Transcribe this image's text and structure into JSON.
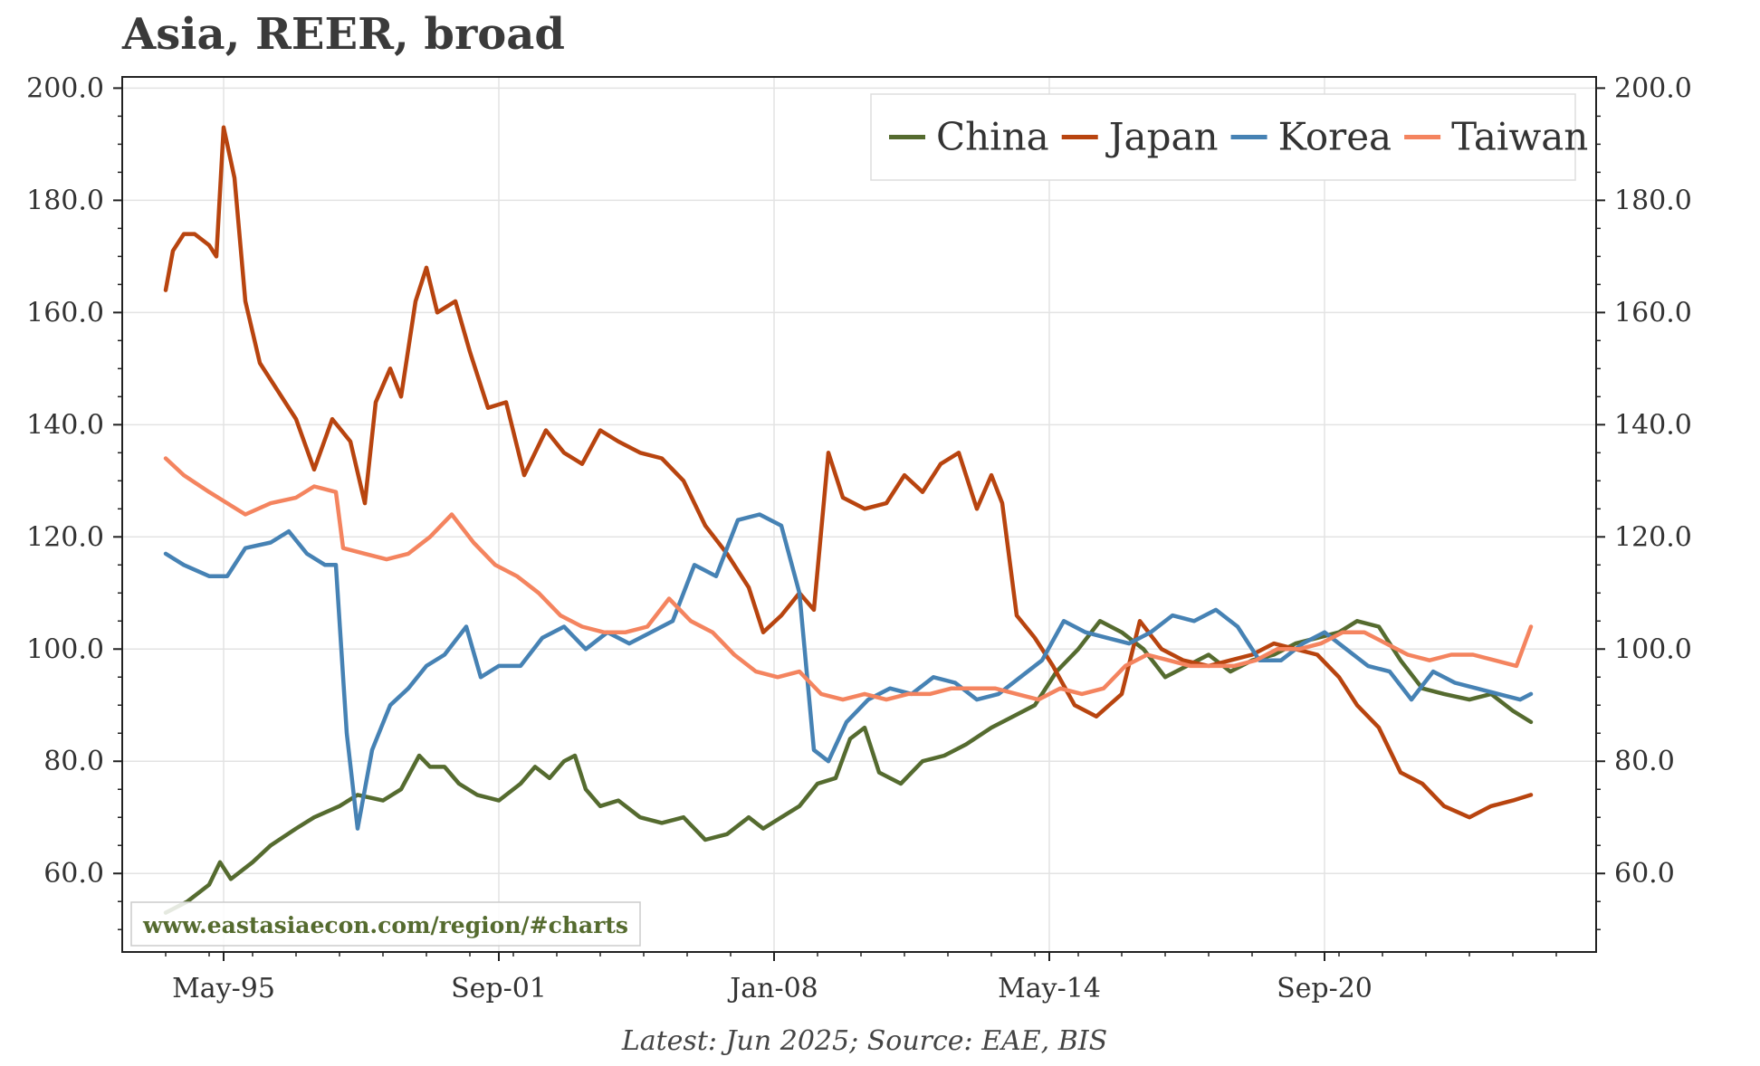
{
  "chart_data": {
    "type": "line",
    "title": "Asia, REER, broad",
    "xlabel": "",
    "ylabel": "",
    "ylim": [
      46,
      202
    ],
    "yticks": [
      "60.0",
      "80.0",
      "100.0",
      "120.0",
      "140.0",
      "160.0",
      "180.0",
      "200.0"
    ],
    "xticks": [
      "May-95",
      "Sep-01",
      "Jan-08",
      "May-14",
      "Sep-20"
    ],
    "xrange": [
      "1993-01",
      "2026-12"
    ],
    "grid": true,
    "legend_position": "top-right",
    "watermark": "www.eastasiaecon.com/region/#charts",
    "footer": "Latest: Jun 2025; Source: EAE, BIS",
    "series": [
      {
        "name": "China",
        "color": "#556b2f",
        "points": [
          [
            "1994-01",
            53
          ],
          [
            "1994-07",
            55
          ],
          [
            "1995-01",
            58
          ],
          [
            "1995-04",
            62
          ],
          [
            "1995-07",
            59
          ],
          [
            "1996-01",
            62
          ],
          [
            "1996-06",
            65
          ],
          [
            "1997-01",
            68
          ],
          [
            "1997-06",
            70
          ],
          [
            "1998-01",
            72
          ],
          [
            "1998-06",
            74
          ],
          [
            "1999-01",
            73
          ],
          [
            "1999-06",
            75
          ],
          [
            "1999-11",
            81
          ],
          [
            "2000-02",
            79
          ],
          [
            "2000-06",
            79
          ],
          [
            "2000-10",
            76
          ],
          [
            "2001-03",
            74
          ],
          [
            "2001-09",
            73
          ],
          [
            "2002-03",
            76
          ],
          [
            "2002-07",
            79
          ],
          [
            "2002-11",
            77
          ],
          [
            "2003-03",
            80
          ],
          [
            "2003-06",
            81
          ],
          [
            "2003-09",
            75
          ],
          [
            "2004-01",
            72
          ],
          [
            "2004-06",
            73
          ],
          [
            "2004-12",
            70
          ],
          [
            "2005-06",
            69
          ],
          [
            "2005-12",
            70
          ],
          [
            "2006-06",
            66
          ],
          [
            "2006-12",
            67
          ],
          [
            "2007-06",
            70
          ],
          [
            "2007-10",
            68
          ],
          [
            "2008-03",
            70
          ],
          [
            "2008-08",
            72
          ],
          [
            "2009-01",
            76
          ],
          [
            "2009-06",
            77
          ],
          [
            "2009-10",
            84
          ],
          [
            "2010-02",
            86
          ],
          [
            "2010-06",
            78
          ],
          [
            "2010-12",
            76
          ],
          [
            "2011-06",
            80
          ],
          [
            "2011-12",
            81
          ],
          [
            "2012-06",
            83
          ],
          [
            "2013-01",
            86
          ],
          [
            "2013-07",
            88
          ],
          [
            "2014-01",
            90
          ],
          [
            "2014-07",
            96
          ],
          [
            "2015-01",
            100
          ],
          [
            "2015-07",
            105
          ],
          [
            "2016-01",
            103
          ],
          [
            "2016-07",
            100
          ],
          [
            "2017-01",
            95
          ],
          [
            "2017-07",
            97
          ],
          [
            "2018-01",
            99
          ],
          [
            "2018-07",
            96
          ],
          [
            "2019-01",
            98
          ],
          [
            "2019-07",
            99
          ],
          [
            "2020-01",
            101
          ],
          [
            "2020-07",
            102
          ],
          [
            "2021-01",
            103
          ],
          [
            "2021-06",
            105
          ],
          [
            "2021-12",
            104
          ],
          [
            "2022-06",
            98
          ],
          [
            "2022-12",
            93
          ],
          [
            "2023-06",
            92
          ],
          [
            "2024-01",
            91
          ],
          [
            "2024-07",
            92
          ],
          [
            "2025-01",
            89
          ],
          [
            "2025-06",
            87
          ]
        ]
      },
      {
        "name": "Japan",
        "color": "#b8440f",
        "points": [
          [
            "1994-01",
            164
          ],
          [
            "1994-03",
            171
          ],
          [
            "1994-06",
            174
          ],
          [
            "1994-09",
            174
          ],
          [
            "1995-01",
            172
          ],
          [
            "1995-03",
            170
          ],
          [
            "1995-05",
            193
          ],
          [
            "1995-08",
            184
          ],
          [
            "1995-11",
            162
          ],
          [
            "1996-03",
            151
          ],
          [
            "1996-08",
            146
          ],
          [
            "1997-01",
            141
          ],
          [
            "1997-06",
            132
          ],
          [
            "1997-11",
            141
          ],
          [
            "1998-04",
            137
          ],
          [
            "1998-08",
            126
          ],
          [
            "1998-11",
            144
          ],
          [
            "1999-03",
            150
          ],
          [
            "1999-06",
            145
          ],
          [
            "1999-10",
            162
          ],
          [
            "2000-01",
            168
          ],
          [
            "2000-04",
            160
          ],
          [
            "2000-09",
            162
          ],
          [
            "2001-01",
            153
          ],
          [
            "2001-06",
            143
          ],
          [
            "2001-11",
            144
          ],
          [
            "2002-04",
            131
          ],
          [
            "2002-10",
            139
          ],
          [
            "2003-03",
            135
          ],
          [
            "2003-08",
            133
          ],
          [
            "2004-01",
            139
          ],
          [
            "2004-06",
            137
          ],
          [
            "2004-12",
            135
          ],
          [
            "2005-06",
            134
          ],
          [
            "2005-12",
            130
          ],
          [
            "2006-06",
            122
          ],
          [
            "2006-12",
            117
          ],
          [
            "2007-06",
            111
          ],
          [
            "2007-10",
            103
          ],
          [
            "2008-03",
            106
          ],
          [
            "2008-08",
            110
          ],
          [
            "2008-12",
            107
          ],
          [
            "2009-04",
            135
          ],
          [
            "2009-08",
            127
          ],
          [
            "2010-02",
            125
          ],
          [
            "2010-08",
            126
          ],
          [
            "2011-01",
            131
          ],
          [
            "2011-06",
            128
          ],
          [
            "2011-11",
            133
          ],
          [
            "2012-04",
            135
          ],
          [
            "2012-09",
            125
          ],
          [
            "2013-01",
            131
          ],
          [
            "2013-04",
            126
          ],
          [
            "2013-08",
            106
          ],
          [
            "2014-01",
            102
          ],
          [
            "2014-06",
            97
          ],
          [
            "2014-12",
            90
          ],
          [
            "2015-06",
            88
          ],
          [
            "2016-01",
            92
          ],
          [
            "2016-06",
            105
          ],
          [
            "2016-12",
            100
          ],
          [
            "2017-06",
            98
          ],
          [
            "2018-01",
            97
          ],
          [
            "2018-07",
            98
          ],
          [
            "2019-01",
            99
          ],
          [
            "2019-07",
            101
          ],
          [
            "2020-01",
            100
          ],
          [
            "2020-07",
            99
          ],
          [
            "2021-01",
            95
          ],
          [
            "2021-06",
            90
          ],
          [
            "2021-12",
            86
          ],
          [
            "2022-06",
            78
          ],
          [
            "2022-12",
            76
          ],
          [
            "2023-06",
            72
          ],
          [
            "2024-01",
            70
          ],
          [
            "2024-07",
            72
          ],
          [
            "2025-01",
            73
          ],
          [
            "2025-06",
            74
          ]
        ]
      },
      {
        "name": "Korea",
        "color": "#4682b4",
        "points": [
          [
            "1994-01",
            117
          ],
          [
            "1994-06",
            115
          ],
          [
            "1995-01",
            113
          ],
          [
            "1995-06",
            113
          ],
          [
            "1995-11",
            118
          ],
          [
            "1996-06",
            119
          ],
          [
            "1996-11",
            121
          ],
          [
            "1997-04",
            117
          ],
          [
            "1997-09",
            115
          ],
          [
            "1997-12",
            115
          ],
          [
            "1998-03",
            85
          ],
          [
            "1998-06",
            68
          ],
          [
            "1998-10",
            82
          ],
          [
            "1999-03",
            90
          ],
          [
            "1999-08",
            93
          ],
          [
            "2000-01",
            97
          ],
          [
            "2000-06",
            99
          ],
          [
            "2000-12",
            104
          ],
          [
            "2001-04",
            95
          ],
          [
            "2001-09",
            97
          ],
          [
            "2002-03",
            97
          ],
          [
            "2002-09",
            102
          ],
          [
            "2003-03",
            104
          ],
          [
            "2003-09",
            100
          ],
          [
            "2004-03",
            103
          ],
          [
            "2004-09",
            101
          ],
          [
            "2005-03",
            103
          ],
          [
            "2005-09",
            105
          ],
          [
            "2006-03",
            115
          ],
          [
            "2006-09",
            113
          ],
          [
            "2007-03",
            123
          ],
          [
            "2007-09",
            124
          ],
          [
            "2008-03",
            122
          ],
          [
            "2008-08",
            110
          ],
          [
            "2008-12",
            82
          ],
          [
            "2009-04",
            80
          ],
          [
            "2009-09",
            87
          ],
          [
            "2010-03",
            91
          ],
          [
            "2010-09",
            93
          ],
          [
            "2011-03",
            92
          ],
          [
            "2011-09",
            95
          ],
          [
            "2012-03",
            94
          ],
          [
            "2012-09",
            91
          ],
          [
            "2013-03",
            92
          ],
          [
            "2013-09",
            95
          ],
          [
            "2014-03",
            98
          ],
          [
            "2014-09",
            105
          ],
          [
            "2015-03",
            103
          ],
          [
            "2015-09",
            102
          ],
          [
            "2016-03",
            101
          ],
          [
            "2016-09",
            103
          ],
          [
            "2017-03",
            106
          ],
          [
            "2017-09",
            105
          ],
          [
            "2018-03",
            107
          ],
          [
            "2018-09",
            104
          ],
          [
            "2019-03",
            98
          ],
          [
            "2019-09",
            98
          ],
          [
            "2020-03",
            101
          ],
          [
            "2020-09",
            103
          ],
          [
            "2021-03",
            100
          ],
          [
            "2021-09",
            97
          ],
          [
            "2022-03",
            96
          ],
          [
            "2022-09",
            91
          ],
          [
            "2023-03",
            96
          ],
          [
            "2023-09",
            94
          ],
          [
            "2024-03",
            93
          ],
          [
            "2024-09",
            92
          ],
          [
            "2025-03",
            91
          ],
          [
            "2025-06",
            92
          ]
        ]
      },
      {
        "name": "Taiwan",
        "color": "#f4845f",
        "points": [
          [
            "1994-01",
            134
          ],
          [
            "1994-06",
            131
          ],
          [
            "1995-01",
            128
          ],
          [
            "1995-06",
            126
          ],
          [
            "1995-11",
            124
          ],
          [
            "1996-06",
            126
          ],
          [
            "1997-01",
            127
          ],
          [
            "1997-06",
            129
          ],
          [
            "1997-12",
            128
          ],
          [
            "1998-02",
            118
          ],
          [
            "1998-08",
            117
          ],
          [
            "1999-02",
            116
          ],
          [
            "1999-08",
            117
          ],
          [
            "2000-02",
            120
          ],
          [
            "2000-08",
            124
          ],
          [
            "2001-02",
            119
          ],
          [
            "2001-08",
            115
          ],
          [
            "2002-02",
            113
          ],
          [
            "2002-08",
            110
          ],
          [
            "2003-02",
            106
          ],
          [
            "2003-08",
            104
          ],
          [
            "2004-02",
            103
          ],
          [
            "2004-08",
            103
          ],
          [
            "2005-02",
            104
          ],
          [
            "2005-08",
            109
          ],
          [
            "2006-02",
            105
          ],
          [
            "2006-08",
            103
          ],
          [
            "2007-02",
            99
          ],
          [
            "2007-08",
            96
          ],
          [
            "2008-02",
            95
          ],
          [
            "2008-08",
            96
          ],
          [
            "2009-02",
            92
          ],
          [
            "2009-08",
            91
          ],
          [
            "2010-02",
            92
          ],
          [
            "2010-08",
            91
          ],
          [
            "2011-02",
            92
          ],
          [
            "2011-08",
            92
          ],
          [
            "2012-02",
            93
          ],
          [
            "2012-08",
            93
          ],
          [
            "2013-02",
            93
          ],
          [
            "2013-08",
            92
          ],
          [
            "2014-02",
            91
          ],
          [
            "2014-08",
            93
          ],
          [
            "2015-02",
            92
          ],
          [
            "2015-08",
            93
          ],
          [
            "2016-02",
            97
          ],
          [
            "2016-08",
            99
          ],
          [
            "2017-02",
            98
          ],
          [
            "2017-08",
            97
          ],
          [
            "2018-02",
            97
          ],
          [
            "2018-08",
            97
          ],
          [
            "2019-02",
            98
          ],
          [
            "2019-08",
            100
          ],
          [
            "2020-02",
            100
          ],
          [
            "2020-08",
            101
          ],
          [
            "2021-02",
            103
          ],
          [
            "2021-08",
            103
          ],
          [
            "2022-02",
            101
          ],
          [
            "2022-08",
            99
          ],
          [
            "2023-02",
            98
          ],
          [
            "2023-08",
            99
          ],
          [
            "2024-02",
            99
          ],
          [
            "2024-08",
            98
          ],
          [
            "2025-02",
            97
          ],
          [
            "2025-06",
            104
          ]
        ]
      }
    ]
  }
}
